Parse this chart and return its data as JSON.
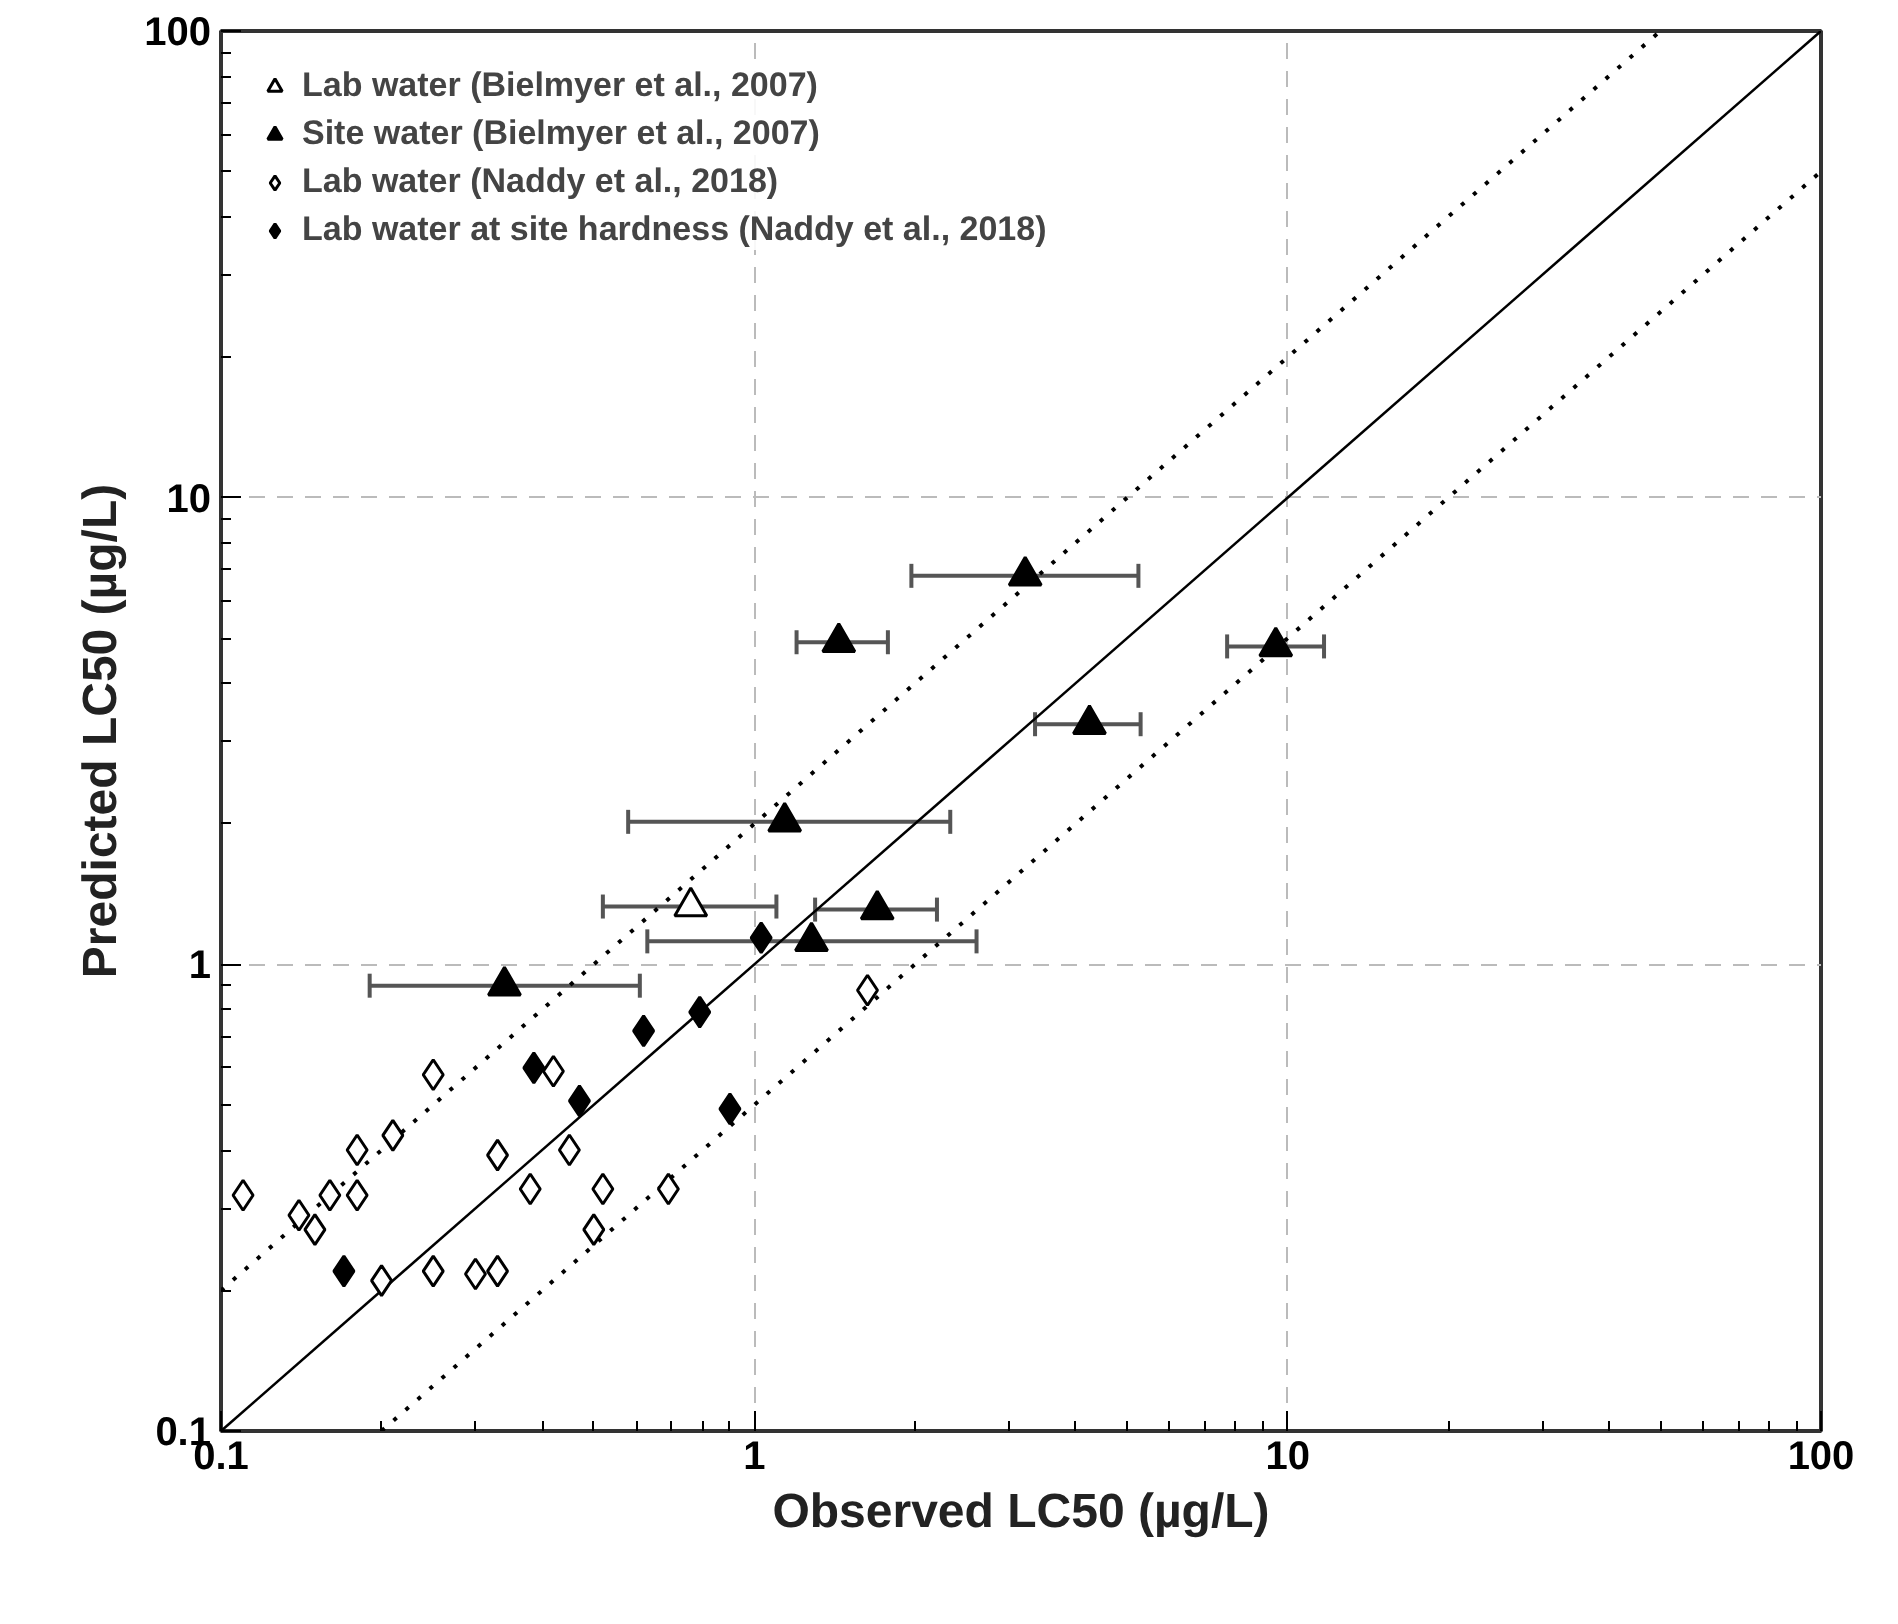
{
  "chart_data": {
    "type": "scatter",
    "xlabel": "Observed LC50 (µg/L)",
    "ylabel": "Predicted LC50 (µg/L)",
    "log": "xy",
    "xlim": [
      0.1,
      100
    ],
    "ylim": [
      0.1,
      100
    ],
    "xticks": [
      0.1,
      1,
      10,
      100
    ],
    "yticks": [
      0.1,
      1,
      10,
      100
    ],
    "grid": true,
    "legend": "top left",
    "series": [
      {
        "type": "line",
        "color": "#000000",
        "line_style": "solid",
        "x": [
          0.1,
          100
        ],
        "values": [
          0.1,
          100
        ]
      },
      {
        "type": "line",
        "color": "#000000",
        "line_style": "dotted",
        "x": [
          0.1,
          50
        ],
        "values": [
          0.2,
          100
        ]
      },
      {
        "type": "line",
        "color": "#000000",
        "line_style": "dotted",
        "x": [
          0.2,
          100
        ],
        "values": [
          0.1,
          50
        ]
      },
      {
        "name": "Lab water (Bielmyer et al., 2007)",
        "color": "#ffffff",
        "marker": "triangle",
        "x": [
          0.76
        ],
        "values": [
          1.33
        ],
        "xerrors": [
          [
            0.52,
            1.1
          ]
        ]
      },
      {
        "name": "Site water (Bielmyer et al., 2007)",
        "color": "#000000",
        "marker": "triangle",
        "x": [
          3.22,
          1.44,
          9.5,
          4.25,
          1.14,
          1.7,
          1.28,
          0.34
        ],
        "values": [
          6.8,
          4.9,
          4.8,
          3.27,
          2.02,
          1.31,
          1.12,
          0.9
        ],
        "xerrors": [
          [
            1.97,
            5.25
          ],
          [
            1.2,
            1.78
          ],
          [
            7.7,
            11.7
          ],
          [
            3.36,
            5.3
          ],
          [
            0.58,
            2.33
          ],
          [
            1.3,
            2.2
          ],
          [
            0.63,
            2.61
          ],
          [
            0.19,
            0.61
          ]
        ]
      },
      {
        "name": "Lab water (Naddy et al., 2018)",
        "color": "#ffffff",
        "marker": "diamond",
        "x": [
          1.63,
          0.42,
          0.25,
          0.33,
          0.45,
          0.38,
          0.52,
          0.69,
          0.11,
          0.18,
          0.21,
          0.14,
          0.16,
          0.18,
          0.15,
          0.2,
          0.25,
          0.3,
          0.33,
          0.5
        ],
        "values": [
          0.88,
          0.59,
          0.58,
          0.39,
          0.4,
          0.33,
          0.33,
          0.33,
          0.32,
          0.4,
          0.43,
          0.29,
          0.32,
          0.32,
          0.27,
          0.21,
          0.22,
          0.217,
          0.22,
          0.27
        ]
      },
      {
        "name": "Lab water at site hardness (Naddy et al., 2018)",
        "color": "#000000",
        "marker": "diamond",
        "x": [
          1.03,
          0.79,
          0.62,
          0.386,
          0.47,
          0.9,
          0.17
        ],
        "values": [
          1.14,
          0.79,
          0.72,
          0.6,
          0.51,
          0.49,
          0.22
        ]
      }
    ]
  }
}
